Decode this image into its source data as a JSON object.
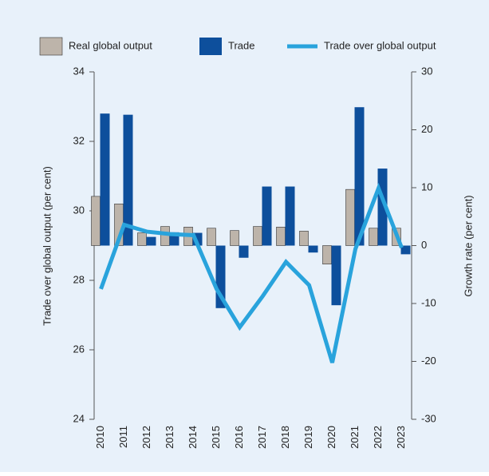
{
  "chart_data": {
    "type": "bar_line",
    "categories": [
      "2010",
      "2011",
      "2012",
      "2013",
      "2014",
      "2015",
      "2016",
      "2017",
      "2018",
      "2019",
      "2020",
      "2021",
      "2022",
      "2023"
    ],
    "series": [
      {
        "name": "Real global output",
        "color": "#bdb4aa",
        "axis": "y2",
        "type": "bar",
        "values": [
          8.5,
          7.2,
          2.2,
          3.3,
          3.2,
          3.0,
          2.6,
          3.3,
          3.2,
          2.5,
          -3.2,
          9.7,
          3.0,
          3.0
        ]
      },
      {
        "name": "Trade",
        "color": "#0d4f9c",
        "axis": "y2",
        "type": "bar",
        "values": [
          22.8,
          22.6,
          1.5,
          2.3,
          2.2,
          -10.8,
          -2.1,
          10.2,
          10.2,
          -1.2,
          -10.3,
          23.9,
          13.3,
          -1.5
        ]
      },
      {
        "name": "Trade over global output",
        "color": "#29a3dc",
        "axis": "y",
        "type": "line",
        "values": [
          27.75,
          29.6,
          29.4,
          29.33,
          29.3,
          27.75,
          26.65,
          27.55,
          28.53,
          27.86,
          25.63,
          28.9,
          30.65,
          28.94
        ]
      }
    ],
    "ylabel": "Trade over global output (per cent)",
    "y2label": "Growth rate (per cent)",
    "ylim": [
      24,
      34
    ],
    "yticks": [
      24,
      26,
      28,
      30,
      32,
      34
    ],
    "y2lim": [
      -30,
      30
    ],
    "y2ticks": [
      -30,
      -20,
      -10,
      0,
      10,
      20,
      30
    ],
    "legend": "top"
  }
}
